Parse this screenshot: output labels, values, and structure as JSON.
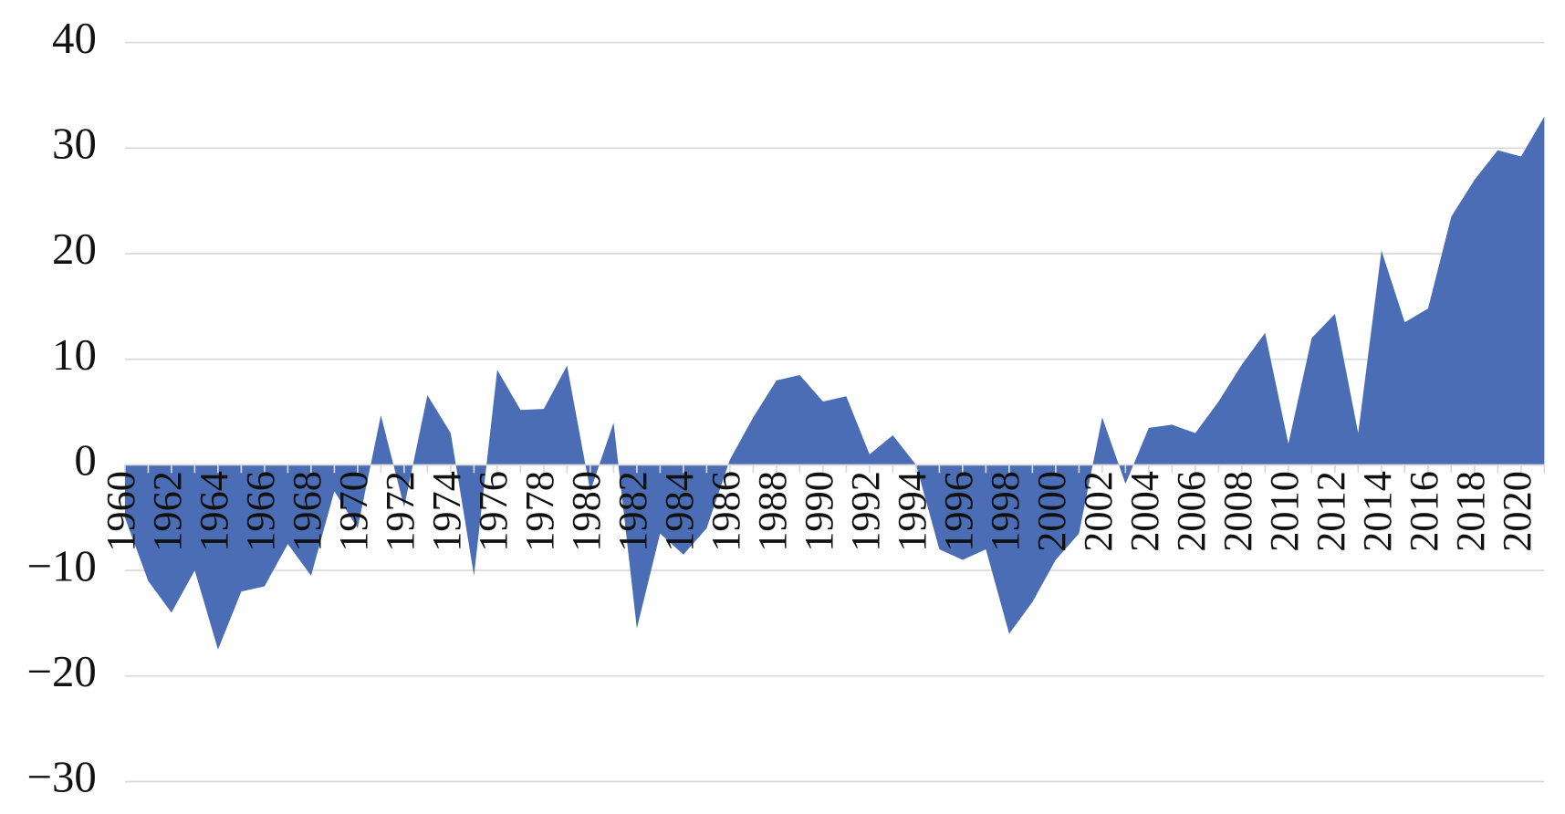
{
  "chart_data": {
    "type": "area",
    "x": [
      1960,
      1961,
      1962,
      1963,
      1964,
      1965,
      1966,
      1967,
      1968,
      1969,
      1970,
      1971,
      1972,
      1973,
      1974,
      1975,
      1976,
      1977,
      1978,
      1979,
      1980,
      1981,
      1982,
      1983,
      1984,
      1985,
      1986,
      1987,
      1988,
      1989,
      1990,
      1991,
      1992,
      1993,
      1994,
      1995,
      1996,
      1997,
      1998,
      1999,
      2000,
      2001,
      2002,
      2003,
      2004,
      2005,
      2006,
      2007,
      2008,
      2009,
      2010,
      2011,
      2012,
      2013,
      2014,
      2015,
      2016,
      2017,
      2018,
      2019,
      2020,
      2021
    ],
    "series": [
      {
        "color": "#4a6db5",
        "values": [
          -5,
          -11,
          -14,
          -10,
          -17.5,
          -12,
          -11.5,
          -7.5,
          -10.5,
          -2.5,
          -6,
          4.7,
          -4,
          6.6,
          3,
          -10.5,
          9,
          5.2,
          5.3,
          9.4,
          -2.5,
          4,
          -15.5,
          -6.5,
          -8.5,
          -6,
          0.5,
          4.5,
          8,
          8.5,
          6,
          6.5,
          1,
          2.8,
          0,
          -8,
          -9,
          -8,
          -16,
          -13,
          -9,
          -6.5,
          4.5,
          -1.8,
          3.5,
          3.8,
          3,
          6,
          9.5,
          12.5,
          2,
          12,
          14.3,
          3,
          20.3,
          13.5,
          14.8,
          23.5,
          27,
          29.8,
          29.2,
          33
        ]
      }
    ],
    "xlim": [
      1960,
      2021
    ],
    "xticks": [
      1960,
      1962,
      1964,
      1966,
      1968,
      1970,
      1972,
      1974,
      1976,
      1978,
      1980,
      1982,
      1984,
      1986,
      1988,
      1990,
      1992,
      1994,
      1996,
      1998,
      2000,
      2002,
      2004,
      2006,
      2008,
      2010,
      2012,
      2014,
      2016,
      2018,
      2020
    ],
    "ylim": [
      -30,
      40
    ],
    "yticks": [
      {
        "value": -30,
        "label": "−30"
      },
      {
        "value": -20,
        "label": "−20"
      },
      {
        "value": -10,
        "label": "−10"
      },
      0,
      10,
      20,
      30,
      40
    ],
    "grid": true
  }
}
